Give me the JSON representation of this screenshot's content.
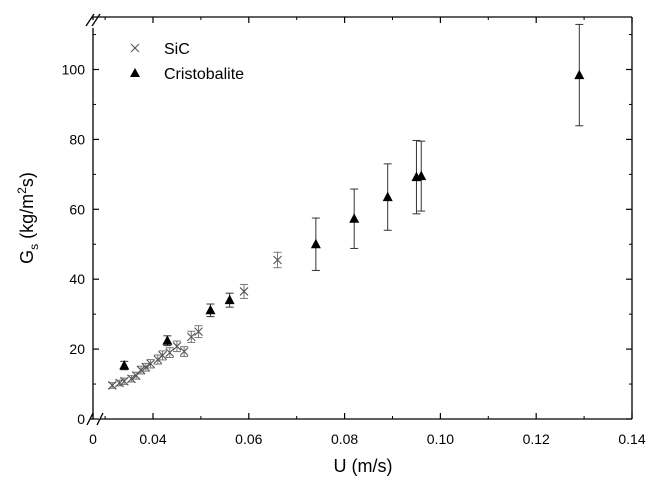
{
  "chart_data": {
    "type": "scatter",
    "xlabel": "U (m/s)",
    "ylabel_main": "G",
    "ylabel_sub": "s",
    "ylabel_rest_1": " (kg/m",
    "ylabel_sup": "2",
    "ylabel_rest_2": "s)",
    "xlim": [
      0.0,
      0.14
    ],
    "ylim": [
      0,
      115
    ],
    "axis_break": true,
    "x_ticks": [
      {
        "value": 0.0,
        "label": "0"
      },
      {
        "value": 0.04,
        "label": "0.04"
      },
      {
        "value": 0.06,
        "label": "0.06"
      },
      {
        "value": 0.08,
        "label": "0.08"
      },
      {
        "value": 0.1,
        "label": "0.10"
      },
      {
        "value": 0.12,
        "label": "0.12"
      },
      {
        "value": 0.14,
        "label": "0.14"
      }
    ],
    "y_ticks": [
      {
        "value": 0,
        "label": "0"
      },
      {
        "value": 20,
        "label": "20"
      },
      {
        "value": 40,
        "label": "40"
      },
      {
        "value": 60,
        "label": "60"
      },
      {
        "value": 80,
        "label": "80"
      },
      {
        "value": 100,
        "label": "100"
      }
    ],
    "legend_position": "top-left",
    "series": [
      {
        "name": "SiC",
        "marker": "x",
        "color": "#555555",
        "points": [
          {
            "x": 0.0315,
            "y": 9.6,
            "err": 0.8
          },
          {
            "x": 0.033,
            "y": 10.3,
            "err": 0.8
          },
          {
            "x": 0.034,
            "y": 10.8,
            "err": 0.9
          },
          {
            "x": 0.0355,
            "y": 11.5,
            "err": 0.9
          },
          {
            "x": 0.0365,
            "y": 12.4,
            "err": 1.0
          },
          {
            "x": 0.0375,
            "y": 14.0,
            "err": 1.1
          },
          {
            "x": 0.0385,
            "y": 14.8,
            "err": 1.1
          },
          {
            "x": 0.0395,
            "y": 15.8,
            "err": 1.2
          },
          {
            "x": 0.041,
            "y": 17.0,
            "err": 1.3
          },
          {
            "x": 0.042,
            "y": 18.2,
            "err": 1.3
          },
          {
            "x": 0.0435,
            "y": 19.0,
            "err": 1.4
          },
          {
            "x": 0.045,
            "y": 20.8,
            "err": 1.5
          },
          {
            "x": 0.0465,
            "y": 19.3,
            "err": 1.4
          },
          {
            "x": 0.048,
            "y": 23.5,
            "err": 1.6
          },
          {
            "x": 0.0495,
            "y": 25.0,
            "err": 1.7
          },
          {
            "x": 0.059,
            "y": 36.5,
            "err": 2.0
          },
          {
            "x": 0.066,
            "y": 45.5,
            "err": 2.2
          }
        ]
      },
      {
        "name": "Cristobalite",
        "marker": "triangle",
        "color": "#000000",
        "points": [
          {
            "x": 0.034,
            "y": 15.3,
            "err": 1.2
          },
          {
            "x": 0.043,
            "y": 22.4,
            "err": 1.4
          },
          {
            "x": 0.052,
            "y": 31.1,
            "err": 1.8
          },
          {
            "x": 0.056,
            "y": 34.0,
            "err": 2.0
          },
          {
            "x": 0.074,
            "y": 50.0,
            "err": 7.5
          },
          {
            "x": 0.082,
            "y": 57.3,
            "err": 8.5
          },
          {
            "x": 0.089,
            "y": 63.5,
            "err": 9.5
          },
          {
            "x": 0.095,
            "y": 69.2,
            "err": 10.5
          },
          {
            "x": 0.096,
            "y": 69.5,
            "err": 10.0
          },
          {
            "x": 0.129,
            "y": 98.4,
            "err": 14.5
          }
        ]
      }
    ]
  }
}
